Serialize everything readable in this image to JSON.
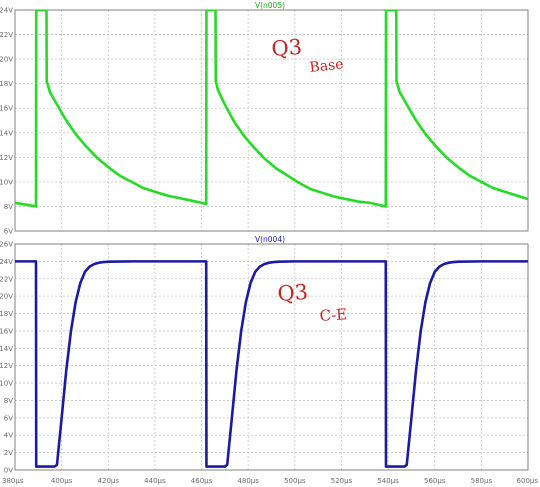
{
  "chart_data": [
    {
      "type": "line",
      "title": "V(n005)",
      "xlabel": "",
      "ylabel": "",
      "xlim": [
        380,
        600
      ],
      "ylim": [
        6,
        24
      ],
      "x_unit": "µs",
      "y_unit": "V",
      "grid": true,
      "y_ticks": [
        "6V",
        "8V",
        "10V",
        "12V",
        "14V",
        "16V",
        "18V",
        "20V",
        "22V",
        "24V"
      ],
      "colors": {
        "series": "#22dd22",
        "title": "#22aa22",
        "grid": "#c4c4c4",
        "frame": "#808080"
      },
      "annotation": {
        "line1": "Q3",
        "line2": "Base"
      },
      "series": [
        {
          "x": [
            380,
            389,
            389.1,
            390,
            391,
            392,
            393,
            393.5,
            393.6,
            395,
            398,
            402,
            406,
            410,
            415,
            420,
            425,
            430,
            435,
            440,
            445,
            450,
            455,
            460,
            462,
            462.1,
            463,
            464,
            465,
            466,
            466.1,
            467,
            470,
            474,
            478,
            482,
            487,
            492,
            497,
            502,
            507,
            512,
            517,
            522,
            527,
            532,
            539,
            539.1,
            540,
            541,
            542,
            543,
            543.5,
            543.6,
            545,
            548,
            552,
            556,
            560,
            565,
            570,
            575,
            580,
            585,
            590,
            595,
            600
          ],
          "values": [
            8.3,
            8.0,
            24,
            24,
            24,
            24,
            24,
            24,
            18.2,
            17.3,
            16.3,
            15.0,
            13.9,
            13.0,
            12.0,
            11.2,
            10.5,
            10.0,
            9.5,
            9.2,
            8.9,
            8.7,
            8.5,
            8.3,
            8.2,
            24,
            24,
            24,
            24,
            24,
            18.2,
            17.5,
            16.3,
            14.9,
            13.8,
            12.9,
            11.9,
            11.1,
            10.5,
            9.9,
            9.4,
            9.1,
            8.8,
            8.6,
            8.4,
            8.3,
            8.0,
            24,
            24,
            24,
            24,
            24,
            24,
            18.2,
            17.3,
            16.3,
            15.0,
            13.9,
            13.0,
            12.0,
            11.2,
            10.5,
            10.0,
            9.5,
            9.2,
            8.9,
            8.6
          ]
        }
      ]
    },
    {
      "type": "line",
      "title": "V(n004)",
      "xlabel": "",
      "ylabel": "",
      "xlim": [
        380,
        600
      ],
      "ylim": [
        0,
        26
      ],
      "x_unit": "µs",
      "y_unit": "V",
      "grid": true,
      "y_ticks": [
        "0V",
        "2V",
        "4V",
        "6V",
        "8V",
        "10V",
        "12V",
        "14V",
        "16V",
        "18V",
        "20V",
        "22V",
        "24V",
        "26V"
      ],
      "x_ticks": [
        "380µs",
        "400µs",
        "420µs",
        "440µs",
        "460µs",
        "480µs",
        "500µs",
        "520µs",
        "540µs",
        "560µs",
        "580µs",
        "600µs"
      ],
      "colors": {
        "series": "#1a1aa6",
        "title": "#1a1aa6",
        "grid": "#c4c4c4",
        "frame": "#808080"
      },
      "annotation": {
        "line1": "Q3",
        "line2": "C-E"
      },
      "series": [
        {
          "x": [
            380,
            389,
            389.1,
            393,
            397,
            398,
            400,
            402,
            404,
            406,
            408,
            410,
            412,
            414,
            416,
            418,
            420,
            430,
            440,
            450,
            462,
            462.1,
            466,
            470,
            471,
            473,
            475,
            477,
            479,
            481,
            483,
            485,
            487,
            489,
            491,
            493,
            500,
            520,
            539,
            539.1,
            543,
            547,
            548,
            550,
            552,
            554,
            556,
            558,
            560,
            562,
            564,
            566,
            568,
            570,
            580,
            590,
            600
          ],
          "values": [
            24,
            24,
            0.4,
            0.4,
            0.4,
            0.6,
            6.0,
            11.5,
            16.0,
            19.3,
            21.5,
            22.8,
            23.4,
            23.7,
            23.85,
            23.92,
            23.96,
            24,
            24,
            24,
            24,
            0.4,
            0.4,
            0.4,
            0.6,
            6.0,
            11.5,
            16.0,
            19.3,
            21.5,
            22.8,
            23.4,
            23.7,
            23.85,
            23.92,
            23.96,
            24,
            24,
            24,
            0.4,
            0.4,
            0.4,
            0.6,
            6.0,
            11.5,
            16.0,
            19.3,
            21.5,
            22.8,
            23.4,
            23.7,
            23.85,
            23.92,
            23.96,
            24,
            24,
            24
          ]
        }
      ]
    }
  ]
}
